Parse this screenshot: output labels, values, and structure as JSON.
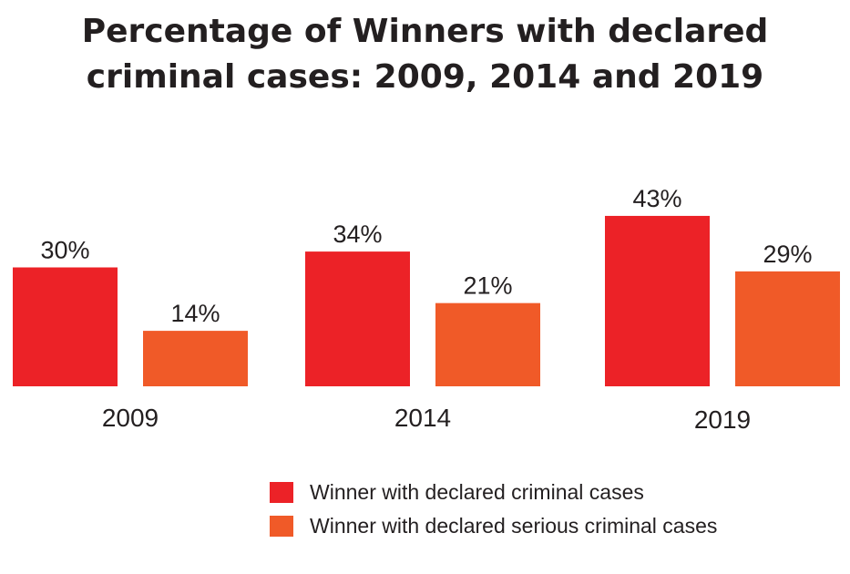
{
  "chart_data": {
    "type": "bar",
    "title_lines": [
      "Percentage of Winners with declared",
      "criminal cases: 2009, 2014 and 2019"
    ],
    "categories": [
      "2009",
      "2014",
      "2019"
    ],
    "series": [
      {
        "name": "Winner with declared criminal cases",
        "values": [
          30,
          34,
          43
        ],
        "labels": [
          "30%",
          "34%",
          "43%"
        ],
        "color": "#ec2227"
      },
      {
        "name": "Winner with declared serious criminal cases",
        "values": [
          14,
          21,
          29
        ],
        "labels": [
          "14%",
          "21%",
          "29%"
        ],
        "color": "#f05a28"
      }
    ],
    "unit": "%",
    "ylim": [
      0,
      100
    ],
    "legend_position": "bottom",
    "grid": false
  }
}
